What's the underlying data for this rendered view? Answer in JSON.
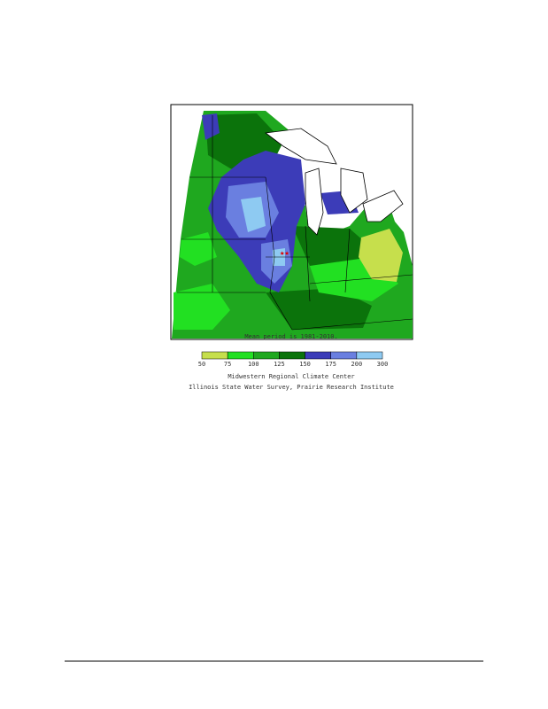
{
  "figure": {
    "caption": "Mean period is 1981-2010.",
    "legend": {
      "labels": [
        50,
        75,
        100,
        125,
        150,
        175,
        200,
        300
      ],
      "colors": [
        "#c6df4c",
        "#22e022",
        "#1fa81f",
        "#0b730b",
        "#3c3cb8",
        "#6a7fe0",
        "#8ecaf2"
      ]
    },
    "credits": [
      "Midwestern Regional Climate Center",
      "Illinois State Water Survey, Prairie Research Institute"
    ]
  }
}
